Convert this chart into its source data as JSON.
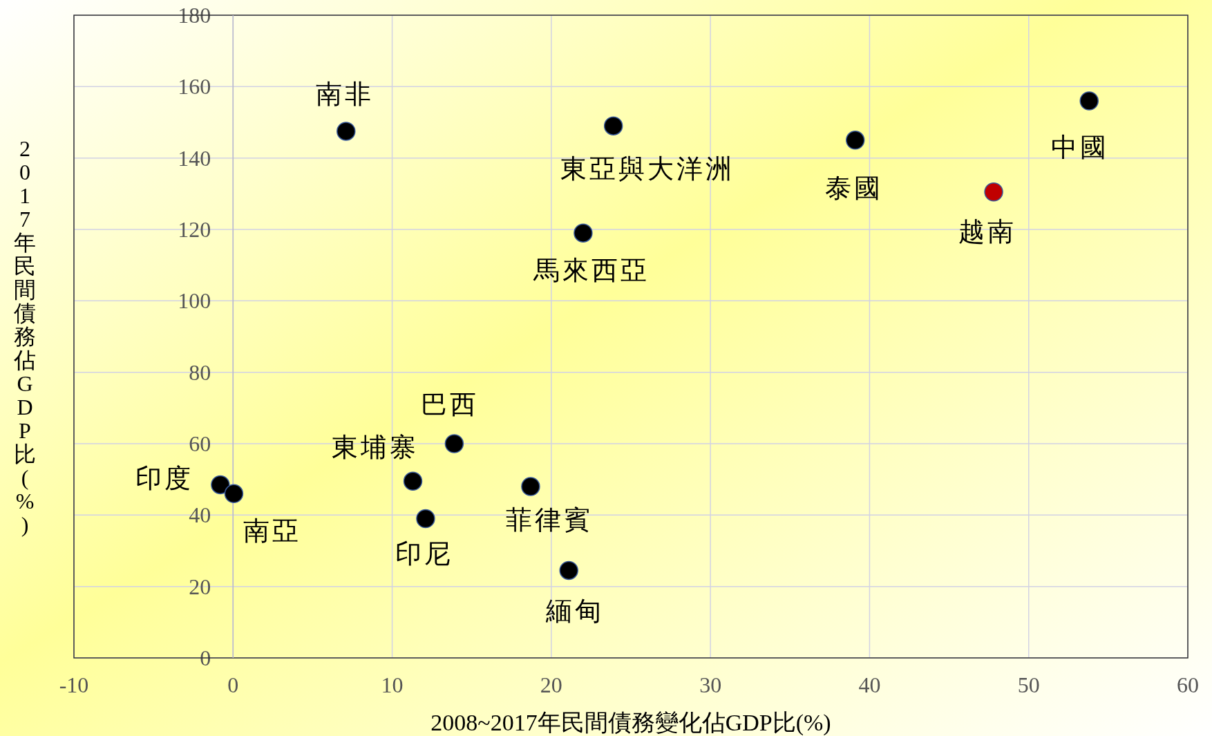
{
  "chart_data": {
    "type": "scatter",
    "xlabel": "2008~2017年民間債務變化佔GDP比(%)",
    "ylabel": "2017年民間債務佔GDP比(%)",
    "x": [
      7.1,
      23.9,
      39.1,
      53.8,
      47.8,
      22.0,
      13.9,
      11.3,
      -0.8,
      0.05,
      12.1,
      18.7,
      21.1
    ],
    "values": [
      147.5,
      149,
      145,
      156,
      130.5,
      119,
      60,
      49.5,
      48.5,
      46,
      39,
      48,
      24.5
    ],
    "colors": [
      "#000000",
      "#000000",
      "#000000",
      "#000000",
      "#c00000",
      "#000000",
      "#000000",
      "#000000",
      "#000000",
      "#000000",
      "#000000",
      "#000000",
      "#000000"
    ],
    "annotations": [
      {
        "text": "南非",
        "x": 7.1,
        "y": 147.5
      },
      {
        "text": "東亞與大洋洲",
        "x": 23.9,
        "y": 149
      },
      {
        "text": "泰國",
        "x": 39.1,
        "y": 145
      },
      {
        "text": "中國",
        "x": 53.8,
        "y": 156
      },
      {
        "text": "越南",
        "x": 47.8,
        "y": 130.5
      },
      {
        "text": "馬來西亞",
        "x": 22.0,
        "y": 119
      },
      {
        "text": "巴西",
        "x": 13.9,
        "y": 60
      },
      {
        "text": "東埔寨",
        "x": 11.3,
        "y": 49.5
      },
      {
        "text": "印度",
        "x": -0.8,
        "y": 48.5
      },
      {
        "text": "南亞",
        "x": 0.05,
        "y": 46
      },
      {
        "text": "印尼",
        "x": 12.1,
        "y": 39
      },
      {
        "text": "菲律賓",
        "x": 18.7,
        "y": 48
      },
      {
        "text": "緬甸",
        "x": 21.1,
        "y": 24.5
      }
    ],
    "xlim": [
      -10,
      60
    ],
    "xticks": [
      -10,
      0,
      10,
      20,
      30,
      40,
      50,
      60
    ],
    "ylim": [
      0,
      180
    ],
    "yticks": [
      0,
      20,
      40,
      60,
      80,
      100,
      120,
      140,
      160,
      180
    ],
    "grid": true,
    "marker": "circle"
  }
}
